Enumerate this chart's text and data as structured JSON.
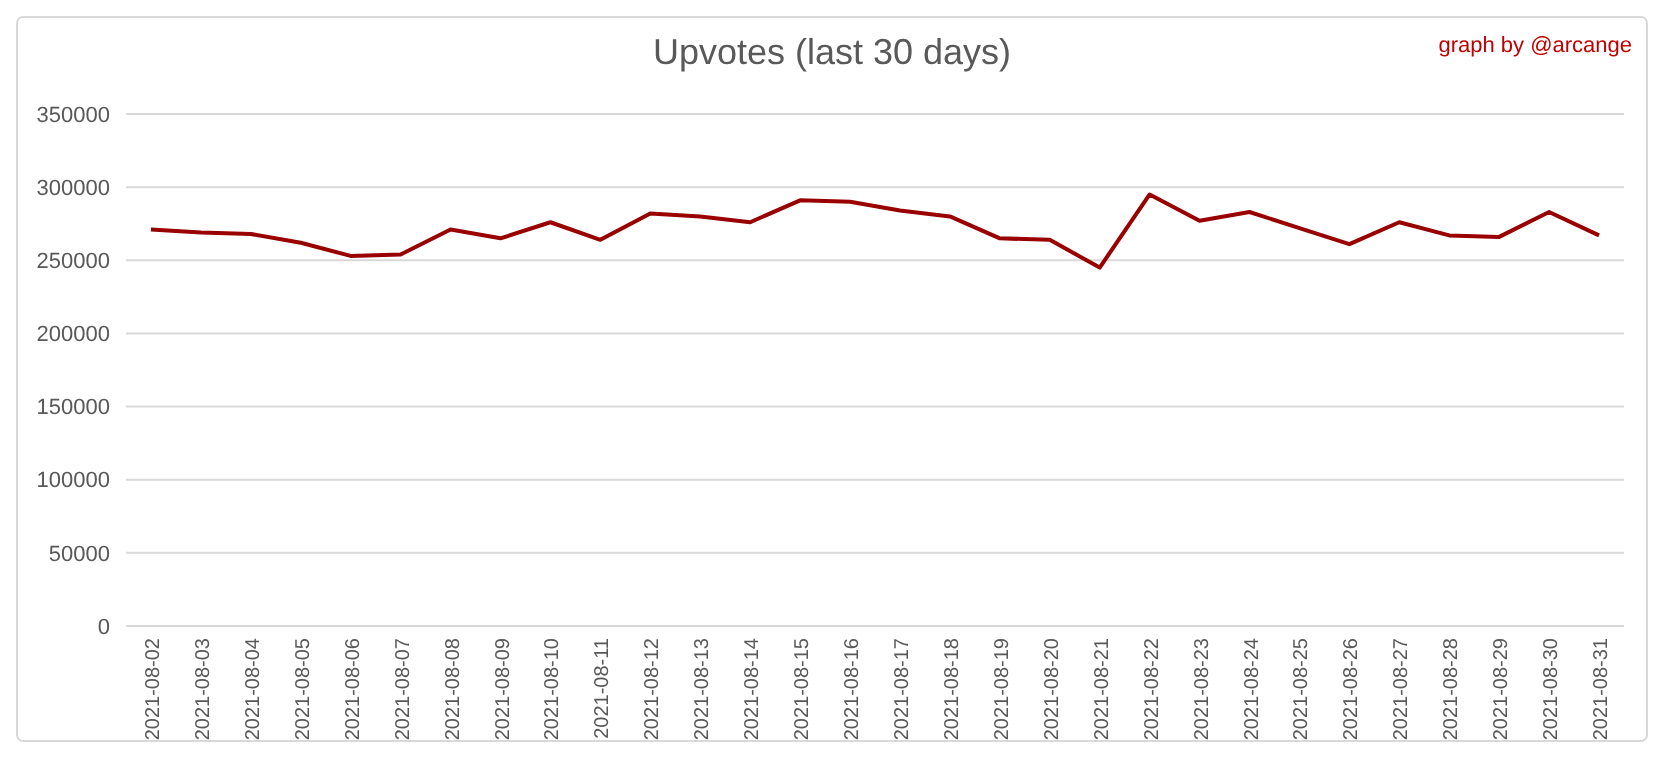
{
  "chart_data": {
    "type": "line",
    "title": "Upvotes (last 30 days)",
    "annotations": [
      "graph by @arcange"
    ],
    "categories": [
      "2021-08-02",
      "2021-08-03",
      "2021-08-04",
      "2021-08-05",
      "2021-08-06",
      "2021-08-07",
      "2021-08-08",
      "2021-08-09",
      "2021-08-10",
      "2021-08-11",
      "2021-08-12",
      "2021-08-13",
      "2021-08-14",
      "2021-08-15",
      "2021-08-16",
      "2021-08-17",
      "2021-08-18",
      "2021-08-19",
      "2021-08-20",
      "2021-08-21",
      "2021-08-22",
      "2021-08-23",
      "2021-08-24",
      "2021-08-25",
      "2021-08-26",
      "2021-08-27",
      "2021-08-28",
      "2021-08-29",
      "2021-08-30",
      "2021-08-31"
    ],
    "series": [
      {
        "color": "#990000",
        "values": [
          271000,
          269000,
          268000,
          262000,
          253000,
          254000,
          271000,
          265000,
          276000,
          264000,
          282000,
          280000,
          276000,
          291000,
          290000,
          284000,
          280000,
          265000,
          264000,
          245000,
          295000,
          277000,
          283000,
          272000,
          261000,
          276000,
          267000,
          266000,
          283000,
          267000
        ]
      }
    ],
    "ylim": [
      0,
      350000
    ],
    "yticks": [
      0,
      50000,
      100000,
      150000,
      200000,
      250000,
      300000,
      350000
    ],
    "grid": "y",
    "marker": "none",
    "line_style": "solid"
  }
}
